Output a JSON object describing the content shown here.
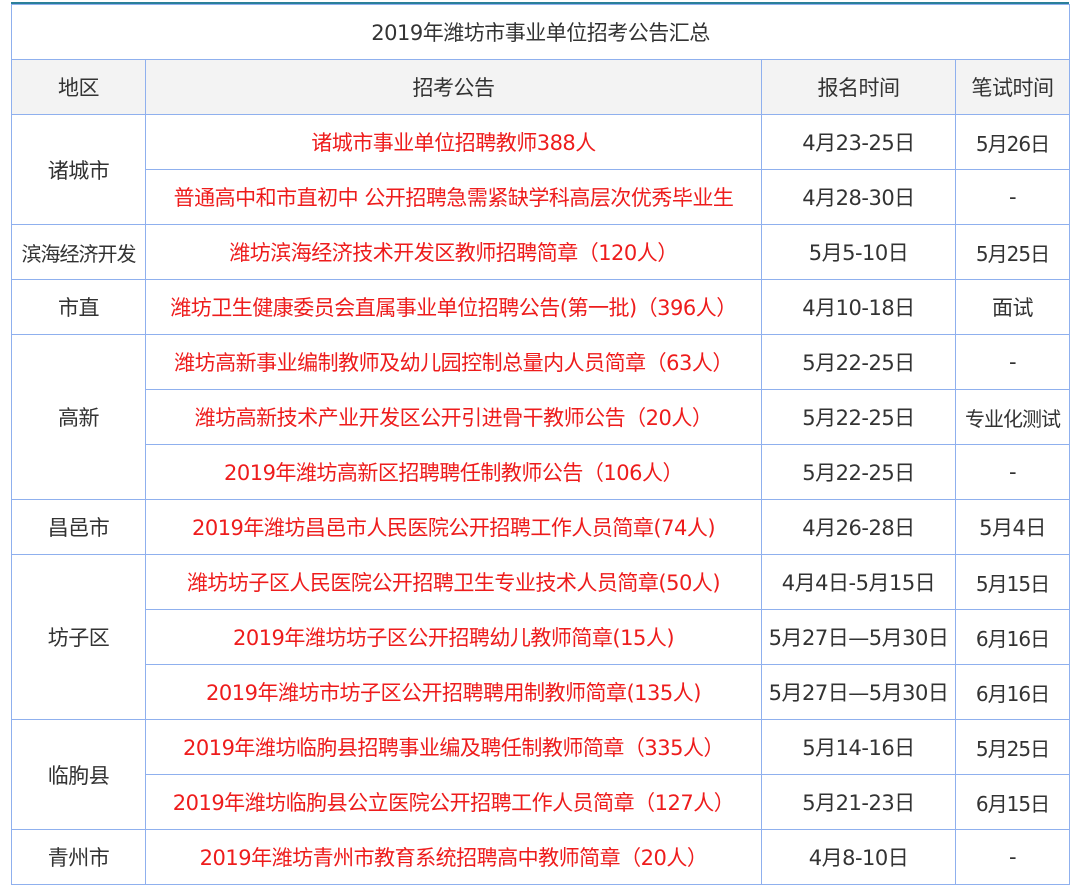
{
  "title": "2019年潍坊市事业单位招考公告汇总",
  "headers": [
    "地区",
    "招考公告",
    "报名时间",
    "笔试时间"
  ],
  "groups": [
    {
      "region": "诸城市",
      "rows": [
        {
          "notice": "诸城市事业单位招聘教师388人",
          "signup": "4月23-25日",
          "exam": "5月26日"
        },
        {
          "notice": "普通高中和市直初中 公开招聘急需紧缺学科高层次优秀毕业生",
          "signup": "4月28-30日",
          "exam": "-"
        }
      ]
    },
    {
      "region": "滨海经济开发",
      "rows": [
        {
          "notice": "潍坊滨海经济技术开发区教师招聘简章（120人）",
          "signup": "5月5-10日",
          "exam": "5月25日"
        }
      ]
    },
    {
      "region": "市直",
      "rows": [
        {
          "notice": "潍坊卫生健康委员会直属事业单位招聘公告(第一批)（396人）",
          "signup": "4月10-18日",
          "exam": "面试"
        }
      ]
    },
    {
      "region": "高新",
      "rows": [
        {
          "notice": "潍坊高新事业编制教师及幼儿园控制总量内人员简章（63人）",
          "signup": "5月22-25日",
          "exam": "-"
        },
        {
          "notice": "潍坊高新技术产业开发区公开引进骨干教师公告（20人）",
          "signup": "5月22-25日",
          "exam": "专业化测试"
        },
        {
          "notice": "2019年潍坊高新区招聘聘任制教师公告（106人）",
          "signup": "5月22-25日",
          "exam": "-"
        }
      ]
    },
    {
      "region": "昌邑市",
      "rows": [
        {
          "notice": "2019年潍坊昌邑市人民医院公开招聘工作人员简章(74人)",
          "signup": "4月26-28日",
          "exam": "5月4日"
        }
      ]
    },
    {
      "region": "坊子区",
      "rows": [
        {
          "notice": "潍坊坊子区人民医院公开招聘卫生专业技术人员简章(50人)",
          "signup": "4月4日-5月15日",
          "exam": "5月15日"
        },
        {
          "notice": "2019年潍坊坊子区公开招聘幼儿教师简章(15人)",
          "signup": "5月27日—5月30日",
          "exam": "6月16日"
        },
        {
          "notice": "2019年潍坊市坊子区公开招聘聘用制教师简章(135人)",
          "signup": "5月27日—5月30日",
          "exam": "6月16日"
        }
      ]
    },
    {
      "region": "临朐县",
      "rows": [
        {
          "notice": "2019年潍坊临朐县招聘事业编及聘任制教师简章（335人）",
          "signup": "5月14-16日",
          "exam": "5月25日"
        },
        {
          "notice": "2019年潍坊临朐县公立医院公开招聘工作人员简章（127人）",
          "signup": "5月21-23日",
          "exam": "6月15日"
        }
      ]
    },
    {
      "region": "青州市",
      "rows": [
        {
          "notice": "2019年潍坊青州市教育系统招聘高中教师简章（20人）",
          "signup": "4月8-10日",
          "exam": "-"
        }
      ]
    }
  ],
  "colors": {
    "notice_text": "#ee1c1c",
    "border": "#8fb0ee",
    "header_bg": "#f3f3f3",
    "top_rule": "#2a7f9a"
  }
}
